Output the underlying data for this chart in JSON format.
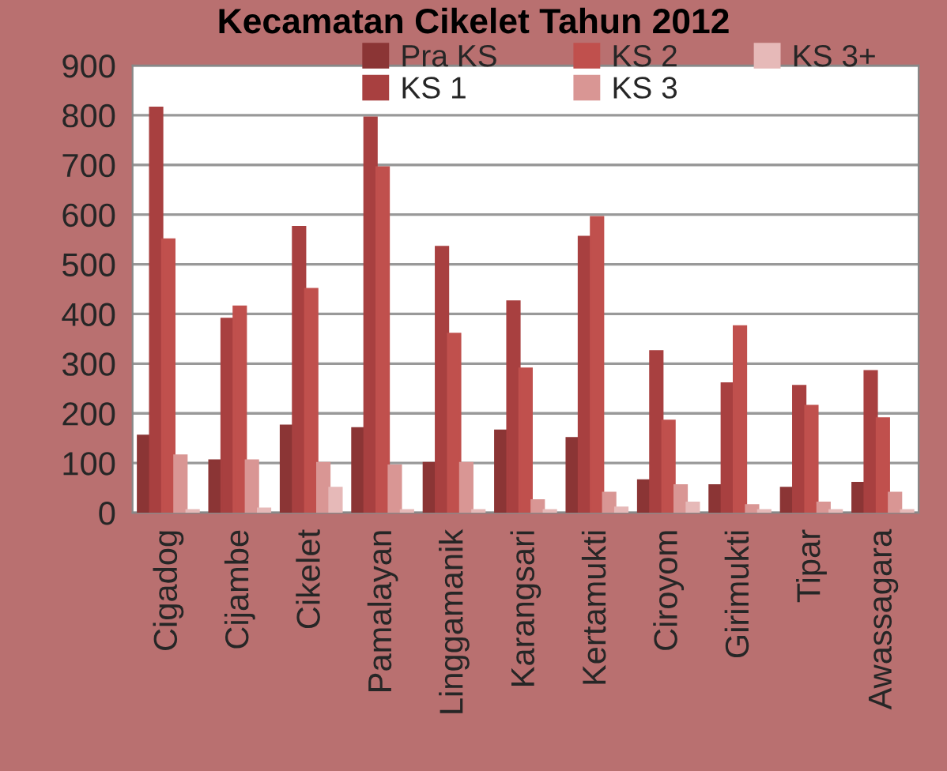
{
  "chart_data": {
    "type": "bar",
    "title": "Kecamatan Cikelet Tahun 2012",
    "categories": [
      "Cigadog",
      "Cijambe",
      "Cikelet",
      "Pamalayan",
      "Linggamanik",
      "Karangsari",
      "Kertamukti",
      "Ciroyom",
      "Girimukti",
      "Tipar",
      "Awassagara"
    ],
    "series": [
      {
        "name": "Pra KS",
        "color": "#8b3535",
        "values": [
          155,
          105,
          175,
          170,
          100,
          165,
          150,
          65,
          55,
          50,
          60
        ]
      },
      {
        "name": "KS 1",
        "color": "#a84040",
        "values": [
          815,
          390,
          575,
          795,
          535,
          425,
          555,
          325,
          260,
          255,
          285
        ]
      },
      {
        "name": "KS 2",
        "color": "#c0504d",
        "values": [
          550,
          415,
          450,
          695,
          360,
          290,
          595,
          185,
          375,
          215,
          190
        ]
      },
      {
        "name": "KS 3",
        "color": "#d99694",
        "values": [
          115,
          105,
          100,
          95,
          100,
          25,
          40,
          55,
          15,
          20,
          40
        ]
      },
      {
        "name": "KS 3+",
        "color": "#e6b9b8",
        "values": [
          5,
          8,
          50,
          5,
          5,
          5,
          10,
          20,
          5,
          5,
          5
        ]
      }
    ],
    "ylim": [
      0,
      900
    ],
    "yticks": [
      0,
      100,
      200,
      300,
      400,
      500,
      600,
      700,
      800,
      900
    ],
    "grid": "y",
    "legend": "top"
  }
}
